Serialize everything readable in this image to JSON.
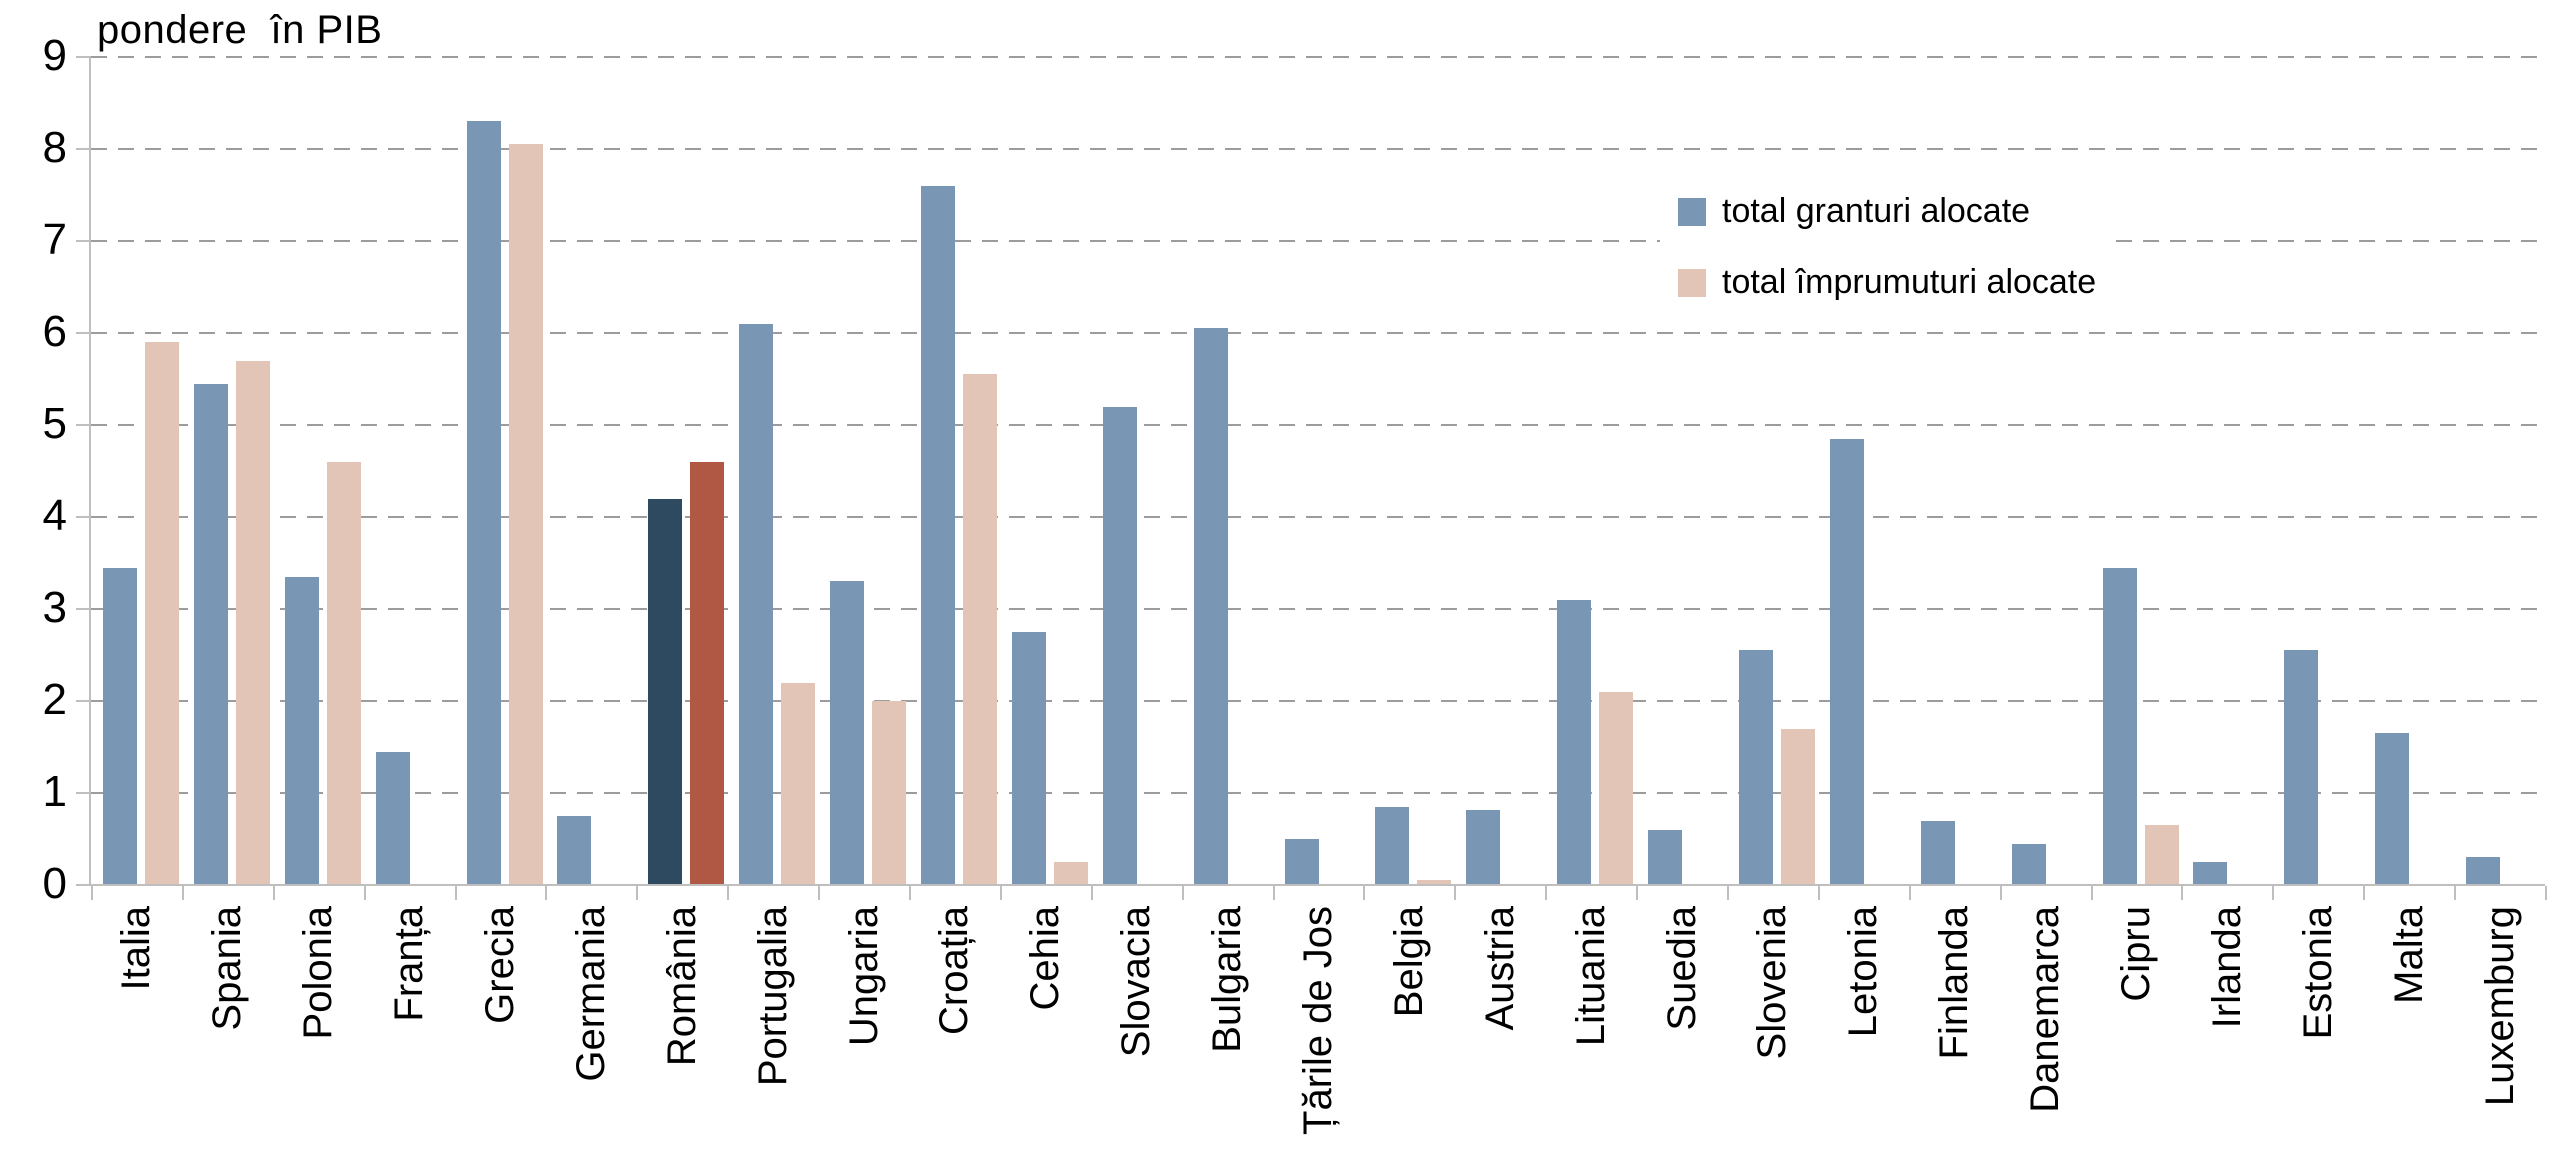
{
  "title": "pondere  în PIB",
  "legend": [
    {
      "label": "total granturi alocate",
      "color": "#7a96b5"
    },
    {
      "label": "total împrumuturi alocate",
      "color": "#e3c5b8"
    }
  ],
  "y_axis": {
    "min": 0,
    "max": 9,
    "ticks": [
      0,
      1,
      2,
      3,
      4,
      5,
      6,
      7,
      8,
      9
    ]
  },
  "colors": {
    "grants": "#7a96b5",
    "loans": "#e3c5b8",
    "highlight_grants": "#2e4a61",
    "highlight_loans": "#b05843",
    "gridline": "#9c9c9c",
    "axis": "#bfbfbf",
    "text": "#000000",
    "background": "#ffffff"
  },
  "chart_data": {
    "type": "bar",
    "title": "pondere  în PIB",
    "xlabel": "",
    "ylabel": "pondere în PIB",
    "ylim": [
      0,
      9
    ],
    "grid": "dashed horizontal",
    "legend_position": "upper right",
    "highlight_category": "România",
    "categories": [
      "Italia",
      "Spania",
      "Polonia",
      "Franța",
      "Grecia",
      "Germania",
      "România",
      "Portugalia",
      "Ungaria",
      "Croația",
      "Cehia",
      "Slovacia",
      "Bulgaria",
      "Țările de Jos",
      "Belgia",
      "Austria",
      "Lituania",
      "Suedia",
      "Slovenia",
      "Letonia",
      "Finlanda",
      "Danemarca",
      "Cipru",
      "Irlanda",
      "Estonia",
      "Malta",
      "Luxemburg"
    ],
    "series": [
      {
        "name": "total granturi alocate",
        "values": [
          3.45,
          5.45,
          3.35,
          1.45,
          8.3,
          0.75,
          4.2,
          6.1,
          3.3,
          7.6,
          2.75,
          5.2,
          6.05,
          0.5,
          0.85,
          0.82,
          3.1,
          0.6,
          2.55,
          4.85,
          0.7,
          0.45,
          3.45,
          0.25,
          2.55,
          1.65,
          0.3
        ]
      },
      {
        "name": "total împrumuturi alocate",
        "values": [
          5.9,
          5.7,
          4.6,
          0,
          8.05,
          0,
          4.6,
          2.2,
          2.0,
          5.55,
          0.25,
          0,
          0,
          0,
          0.05,
          0,
          2.1,
          0,
          1.7,
          0,
          0,
          0,
          0.65,
          0,
          0,
          0,
          0
        ]
      }
    ]
  }
}
